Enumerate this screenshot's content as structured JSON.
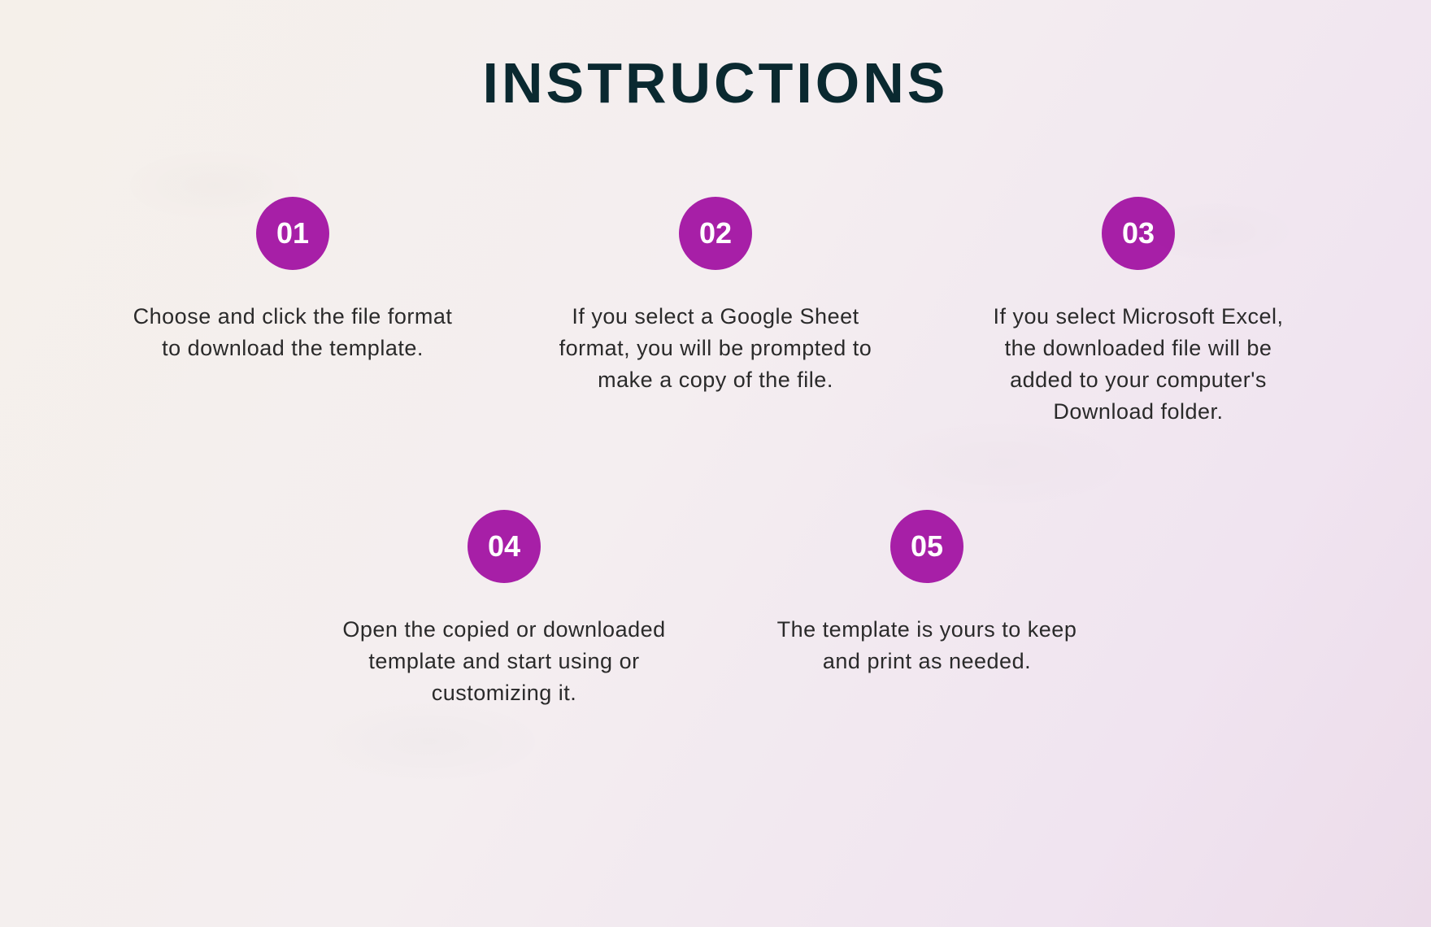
{
  "title": "INSTRUCTIONS",
  "title_color": "#0a2930",
  "badge_color": "#a71fa7",
  "text_color": "#2a2a2a",
  "background_gradient_start": "#f5f0ea",
  "background_gradient_end": "#ecdcea",
  "steps": [
    {
      "num": "01",
      "text": "Choose and click the file format to download the template."
    },
    {
      "num": "02",
      "text": "If you select a Google Sheet format, you will be prompted to make a copy of the file."
    },
    {
      "num": "03",
      "text": "If you select Microsoft Excel, the downloaded file will be added to your computer's Download  folder."
    },
    {
      "num": "04",
      "text": "Open the copied or downloaded template and start using or customizing it."
    },
    {
      "num": "05",
      "text": "The template is yours to keep and print as needed."
    }
  ]
}
